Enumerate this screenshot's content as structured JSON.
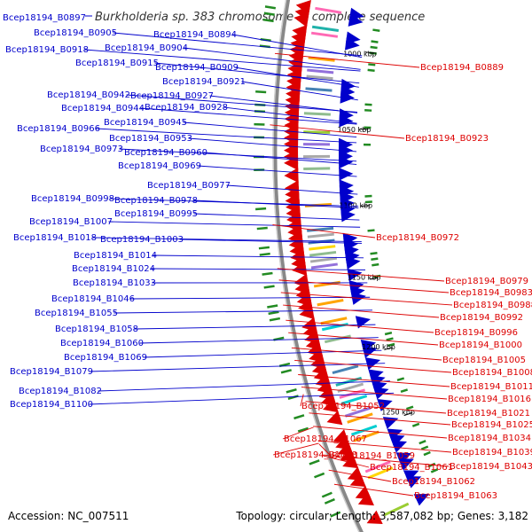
{
  "header": {
    "gene": "Bcep18194_B0897",
    "title": "Burkholderia sp. 383 chromosome 2, complete sequence"
  },
  "footer": {
    "accession": "Accession: NC_007511",
    "topology": "Topology: circular; Length: 3,587,082 bp; Genes: 3,182"
  },
  "ticks": [
    "1000 kbp",
    "1050 kbp",
    "1100 kbp",
    "1150 kbp",
    "1200 kbp",
    "1250 kbp"
  ],
  "colors": {
    "forward_strand": "#0000cc",
    "reverse_strand": "#dd0000",
    "backbone": "#888888",
    "feature_green": "#228b22"
  },
  "left_labels": [
    "Bcep18194_B0905",
    "Bcep18194_B0894",
    "Bcep18194_B0918",
    "Bcep18194_B0904",
    "Bcep18194_B0915",
    "Bcep18194_B0909",
    "Bcep18194_B0921",
    "Bcep18194_B0942",
    "Bcep18194_B0927",
    "Bcep18194_B0944",
    "Bcep18194_B0928",
    "Bcep18194_B0945",
    "Bcep18194_B0966",
    "Bcep18194_B0953",
    "Bcep18194_B0973",
    "Bcep18194_B0960",
    "Bcep18194_B0969",
    "Bcep18194_B0977",
    "Bcep18194_B0998",
    "Bcep18194_B0978",
    "Bcep18194_B0995",
    "Bcep18194_B1007",
    "Bcep18194_B1018",
    "Bcep18194_B1003",
    "Bcep18194_B1014",
    "Bcep18194_B1024",
    "Bcep18194_B1033",
    "Bcep18194_B1046",
    "Bcep18194_B1055",
    "Bcep18194_B1058",
    "Bcep18194_B1060",
    "Bcep18194_B1069",
    "Bcep18194_B1079",
    "Bcep18194_B1082",
    "Bcep18194_B1100"
  ],
  "right_labels": [
    "Bcep18194_B0889",
    "Bcep18194_B0923",
    "Bcep18194_B0972",
    "Bcep18194_B0979",
    "Bcep18194_B0983",
    "Bcep18194_B0988",
    "Bcep18194_B0992",
    "Bcep18194_B0996",
    "Bcep18194_B1000",
    "Bcep18194_B1005",
    "Bcep18194_B1008",
    "Bcep18194_B1011",
    "Bcep18194_B1016",
    "Bcep18194_B1021",
    "Bcep18194_B1025",
    "Bcep18194_B1034",
    "Bcep18194_B1039",
    "Bcep18194_B1043",
    "Bcep18194_B1052",
    "Bcep18194_B1067",
    "Bcep18194_B1059",
    "Bcep18194_B1068",
    "Bcep18194_B1061",
    "Bcep18194_B1062",
    "Bcep18194_B1063"
  ]
}
